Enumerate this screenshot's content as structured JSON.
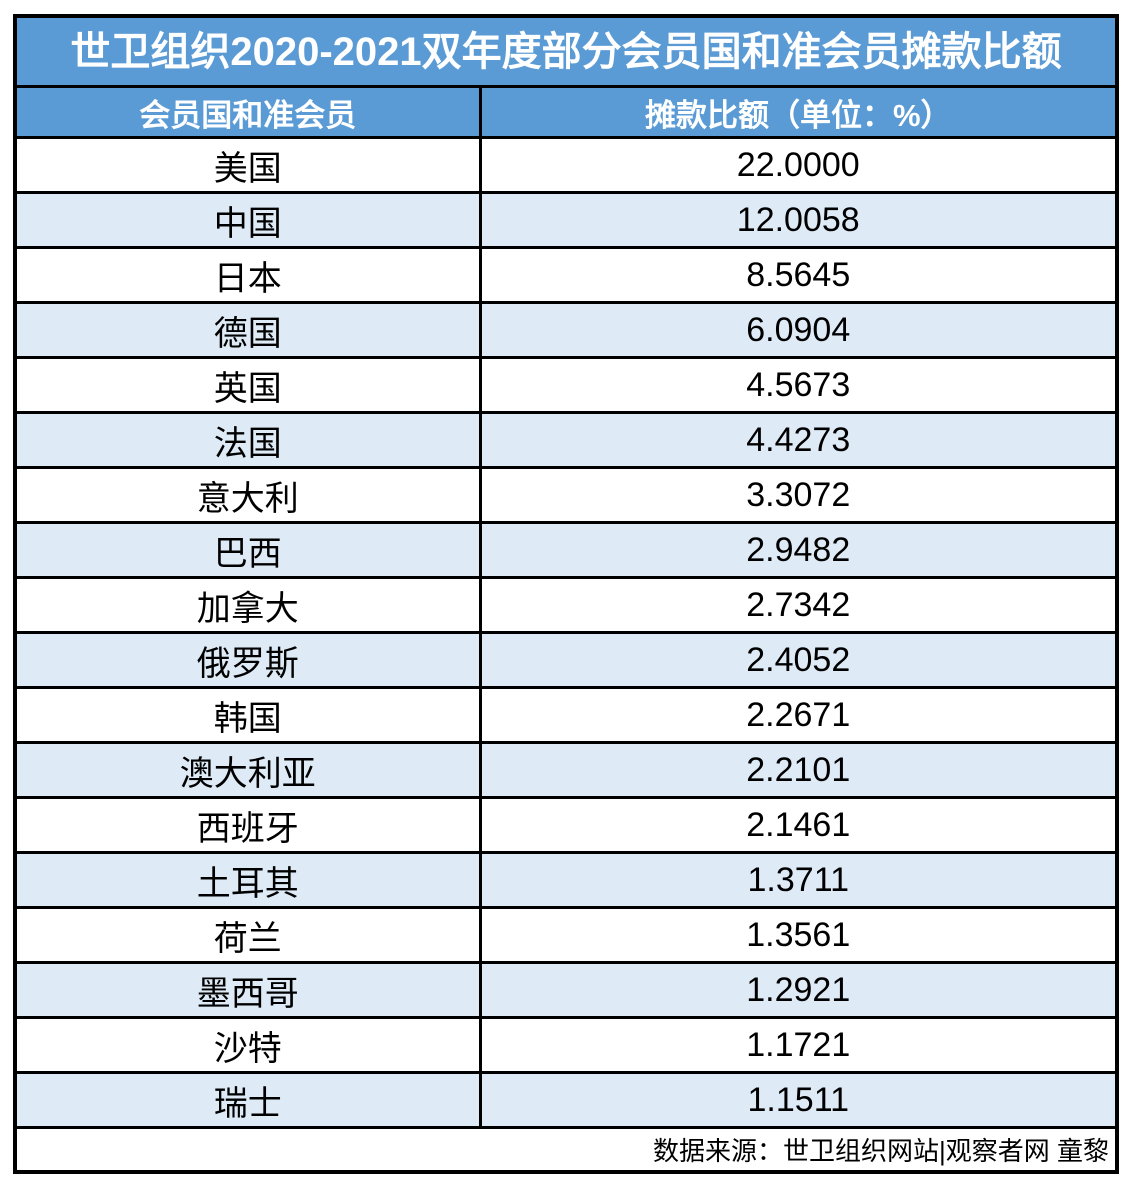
{
  "table": {
    "title": "世卫组织2020-2021双年度部分会员国和准会员摊款比额",
    "columns": [
      "会员国和准会员",
      "摊款比额（单位：%）"
    ],
    "rows": [
      {
        "member": "美国",
        "share": "22.0000"
      },
      {
        "member": "中国",
        "share": "12.0058"
      },
      {
        "member": "日本",
        "share": "8.5645"
      },
      {
        "member": "德国",
        "share": "6.0904"
      },
      {
        "member": "英国",
        "share": "4.5673"
      },
      {
        "member": "法国",
        "share": "4.4273"
      },
      {
        "member": "意大利",
        "share": "3.3072"
      },
      {
        "member": "巴西",
        "share": "2.9482"
      },
      {
        "member": "加拿大",
        "share": "2.7342"
      },
      {
        "member": "俄罗斯",
        "share": "2.4052"
      },
      {
        "member": "韩国",
        "share": "2.2671"
      },
      {
        "member": "澳大利亚",
        "share": "2.2101"
      },
      {
        "member": "西班牙",
        "share": "2.1461"
      },
      {
        "member": "土耳其",
        "share": "1.3711"
      },
      {
        "member": "荷兰",
        "share": "1.3561"
      },
      {
        "member": "墨西哥",
        "share": "1.2921"
      },
      {
        "member": "沙特",
        "share": "1.1721"
      },
      {
        "member": "瑞士",
        "share": "1.1511"
      }
    ],
    "source": "数据来源：世卫组织网站|观察者网 童黎"
  },
  "colors": {
    "header_blue": "#5B9BD5",
    "band_blue": "#DEEBF7",
    "border": "#000000",
    "header_text": "#FFFFFF",
    "body_text": "#000000"
  },
  "chart_data": {
    "type": "table",
    "title": "世卫组织2020-2021双年度部分会员国和准会员摊款比额",
    "columns": [
      "会员国和准会员",
      "摊款比额（单位：%）"
    ],
    "categories": [
      "美国",
      "中国",
      "日本",
      "德国",
      "英国",
      "法国",
      "意大利",
      "巴西",
      "加拿大",
      "俄罗斯",
      "韩国",
      "澳大利亚",
      "西班牙",
      "土耳其",
      "荷兰",
      "墨西哥",
      "沙特",
      "瑞士"
    ],
    "values": [
      22.0,
      12.0058,
      8.5645,
      6.0904,
      4.5673,
      4.4273,
      3.3072,
      2.9482,
      2.7342,
      2.4052,
      2.2671,
      2.2101,
      2.1461,
      1.3711,
      1.3561,
      1.2921,
      1.1721,
      1.1511
    ],
    "unit": "%",
    "source": "数据来源：世卫组织网站|观察者网 童黎"
  }
}
